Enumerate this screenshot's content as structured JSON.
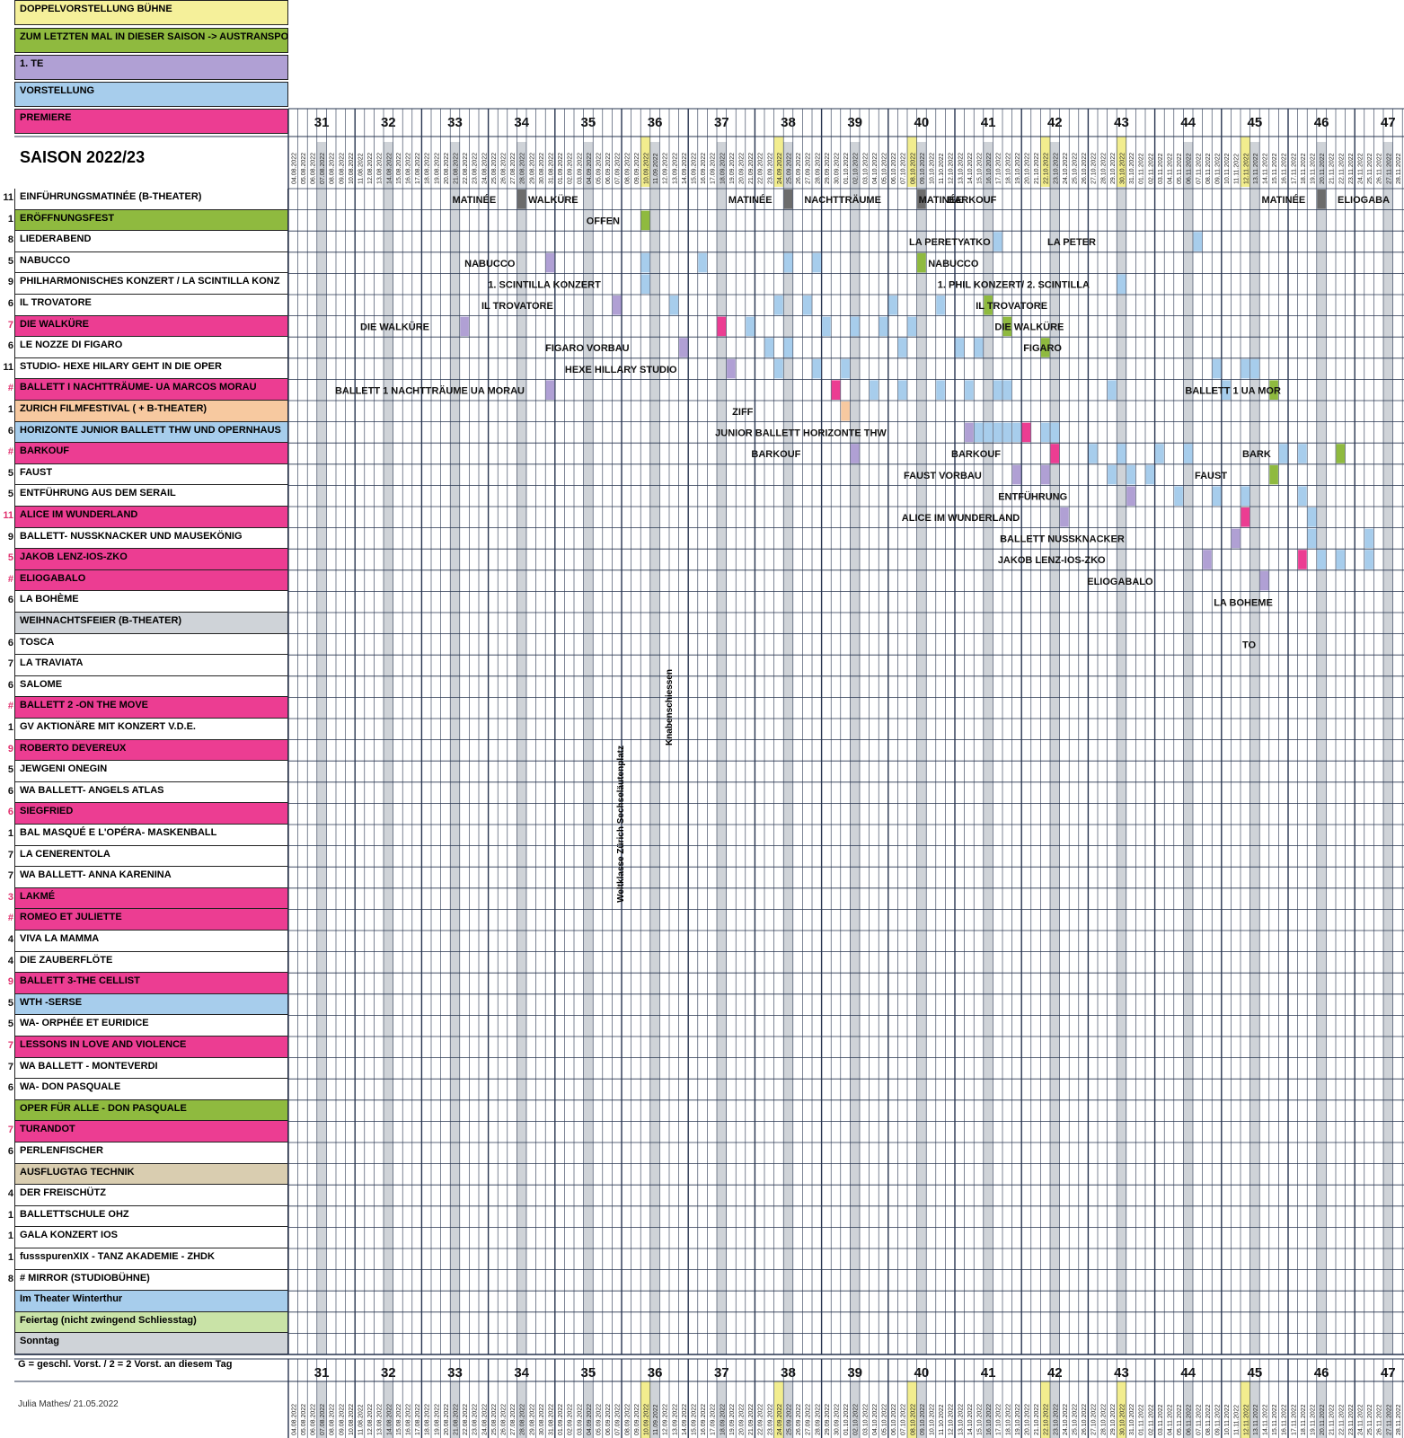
{
  "legend": [
    {
      "label": "DOPPELVORSTELLUNG BÜHNE",
      "color": "#f5f09a"
    },
    {
      "label": "ZUM LETZTEN MAL IN DIESER SAISON -> AUSTRANSPO",
      "color": "#8fba3f"
    },
    {
      "label": "1. TE",
      "color": "#b0a0d4"
    },
    {
      "label": "VORSTELLUNG",
      "color": "#a7cdec"
    },
    {
      "label": "PREMIERE",
      "color": "#ec3d92"
    }
  ],
  "title": "SAISON 2022/23",
  "weeks": [
    "31",
    "32",
    "33",
    "34",
    "35",
    "36",
    "37",
    "38",
    "39",
    "40",
    "41",
    "42",
    "43",
    "44",
    "45",
    "46",
    "47"
  ],
  "dates_first": "04.08.2022",
  "footer_note": "G = geschl. Vorst. / 2 = 2 Vorst. an diesem Tag",
  "footer_author": "Julia Mathes/ 21.05.2022",
  "vertical_notes": [
    "Weltklasse Zürich Sechseläutenplatz",
    "Knabenschiessen"
  ],
  "colors": {
    "premiere": "#ec3d92",
    "te": "#b0a0d4",
    "vorstellung": "#a7cdec",
    "last": "#8fba3f",
    "weekend": "#cfd3d8",
    "grid": "#27344f",
    "sunday_yellow": "#f2ed8e",
    "grey": "#cfd3d8",
    "beige": "#d9cdb0",
    "peach": "#f7c9a0",
    "lightgreen": "#c9e3a7",
    "darkgrey": "#6c6c6c"
  },
  "rows": [
    {
      "n": "11",
      "label": "EINFÜHRUNGSMATINÉE (B-THEATER)",
      "bg": "#ffffff"
    },
    {
      "n": "1",
      "label": "ERÖFFNUNGSFEST",
      "bg": "#8fba3f"
    },
    {
      "n": "8",
      "label": "LIEDERABEND",
      "bg": "#ffffff"
    },
    {
      "n": "5",
      "label": "NABUCCO",
      "bg": "#ffffff"
    },
    {
      "n": "9",
      "label": "PHILHARMONISCHES KONZERT / LA SCINTILLA KONZ",
      "bg": "#ffffff"
    },
    {
      "n": "6",
      "label": "IL TROVATORE",
      "bg": "#ffffff"
    },
    {
      "n": "7",
      "label": "DIE WALKÜRE",
      "bg": "#ec3d92"
    },
    {
      "n": "6",
      "label": "LE NOZZE DI FIGARO",
      "bg": "#ffffff"
    },
    {
      "n": "11",
      "label": "STUDIO- HEXE HILARY GEHT IN DIE OPER",
      "bg": "#ffffff"
    },
    {
      "n": "#",
      "label": "BALLETT I NACHTTRÄUME- UA MARCOS MORAU",
      "bg": "#ec3d92"
    },
    {
      "n": "1",
      "label": "ZURICH FILMFESTIVAL ( + B-THEATER)",
      "bg": "#f7c9a0"
    },
    {
      "n": "6",
      "label": "HORIZONTE JUNIOR BALLETT THW UND OPERNHAUS",
      "bg": "#a7cdec"
    },
    {
      "n": "#",
      "label": "BARKOUF",
      "bg": "#ec3d92"
    },
    {
      "n": "5",
      "label": "FAUST",
      "bg": "#ffffff"
    },
    {
      "n": "5",
      "label": "ENTFÜHRUNG AUS DEM SERAIL",
      "bg": "#ffffff"
    },
    {
      "n": "11",
      "label": "ALICE IM WUNDERLAND",
      "bg": "#ec3d92"
    },
    {
      "n": "9",
      "label": "BALLETT- NUSSKNACKER UND MAUSEKÖNIG",
      "bg": "#ffffff"
    },
    {
      "n": "5",
      "label": "JAKOB LENZ-IOS-ZKO",
      "bg": "#ec3d92"
    },
    {
      "n": "#",
      "label": "ELIOGABALO",
      "bg": "#ec3d92"
    },
    {
      "n": "6",
      "label": "LA BOHÈME",
      "bg": "#ffffff"
    },
    {
      "n": "",
      "label": "WEIHNACHTSFEIER (B-THEATER)",
      "bg": "#cfd3d8"
    },
    {
      "n": "6",
      "label": "TOSCA",
      "bg": "#ffffff"
    },
    {
      "n": "7",
      "label": "LA TRAVIATA",
      "bg": "#ffffff"
    },
    {
      "n": "6",
      "label": "SALOME",
      "bg": "#ffffff"
    },
    {
      "n": "#",
      "label": "BALLETT 2 -ON THE MOVE",
      "bg": "#ec3d92"
    },
    {
      "n": "1",
      "label": "GV AKTIONÄRE MIT KONZERT V.D.E.",
      "bg": "#ffffff"
    },
    {
      "n": "9",
      "label": "ROBERTO DEVEREUX",
      "bg": "#ec3d92"
    },
    {
      "n": "5",
      "label": "JEWGENI ONEGIN",
      "bg": "#ffffff"
    },
    {
      "n": "6",
      "label": "WA BALLETT- ANGELS ATLAS",
      "bg": "#ffffff"
    },
    {
      "n": "6",
      "label": "SIEGFRIED",
      "bg": "#ec3d92"
    },
    {
      "n": "1",
      "label": "BAL MASQUÉ E L'OPÉRA- MASKENBALL",
      "bg": "#ffffff"
    },
    {
      "n": "7",
      "label": "LA CENERENTOLA",
      "bg": "#ffffff"
    },
    {
      "n": "7",
      "label": "WA BALLETT- ANNA KARENINA",
      "bg": "#ffffff"
    },
    {
      "n": "3",
      "label": "LAKMÉ",
      "bg": "#ec3d92"
    },
    {
      "n": "#",
      "label": "ROMEO ET JULIETTE",
      "bg": "#ec3d92"
    },
    {
      "n": "4",
      "label": "VIVA LA MAMMA",
      "bg": "#ffffff"
    },
    {
      "n": "4",
      "label": "DIE ZAUBERFLÖTE",
      "bg": "#ffffff"
    },
    {
      "n": "9",
      "label": "BALLETT 3-THE CELLIST",
      "bg": "#ec3d92"
    },
    {
      "n": "5",
      "label": "WTH -SERSE",
      "bg": "#a7cdec"
    },
    {
      "n": "5",
      "label": "WA- ORPHÉE ET EURIDICE",
      "bg": "#ffffff"
    },
    {
      "n": "7",
      "label": "LESSONS IN LOVE AND VIOLENCE",
      "bg": "#ec3d92"
    },
    {
      "n": "7",
      "label": "WA BALLETT - MONTEVERDI",
      "bg": "#ffffff"
    },
    {
      "n": "6",
      "label": "WA- DON PASQUALE",
      "bg": "#ffffff"
    },
    {
      "n": "",
      "label": "OPER FÜR ALLE - DON PASQUALE",
      "bg": "#8fba3f"
    },
    {
      "n": "7",
      "label": "TURANDOT",
      "bg": "#ec3d92"
    },
    {
      "n": "6",
      "label": "PERLENFISCHER",
      "bg": "#ffffff"
    },
    {
      "n": "",
      "label": "AUSFLUGTAG TECHNIK",
      "bg": "#d9cdb0"
    },
    {
      "n": "4",
      "label": "DER FREISCHÜTZ",
      "bg": "#ffffff"
    },
    {
      "n": "1",
      "label": "BALLETTSCHULE OHZ",
      "bg": "#ffffff"
    },
    {
      "n": "1",
      "label": "GALA KONZERT IOS",
      "bg": "#ffffff"
    },
    {
      "n": "1",
      "label": "fussspurenXIX  - TANZ AKADEMIE - ZHDK",
      "bg": "#ffffff"
    },
    {
      "n": "8",
      "label": "# MIRROR (STUDIOBÜHNE)",
      "bg": "#ffffff"
    },
    {
      "n": "",
      "label": "Im Theater Winterthur",
      "bg": "#a7cdec"
    },
    {
      "n": "",
      "label": "Feiertag (nicht zwingend Schliesstag)",
      "bg": "#c9e3a7"
    },
    {
      "n": "",
      "label": "Sonntag",
      "bg": "#cfd3d8"
    }
  ],
  "annotations": [
    {
      "row": 0,
      "col": 22,
      "text": "MATINÉE",
      "align": "right"
    },
    {
      "row": 0,
      "col": 24,
      "text": "WALKÜRE",
      "align": "left"
    },
    {
      "row": 0,
      "col": 51,
      "text": "MATINÉE",
      "align": "right"
    },
    {
      "row": 0,
      "col": 53,
      "text": "NACHTTRÄUME",
      "align": "left"
    },
    {
      "row": 0,
      "col": 65,
      "text": "MATINÉE",
      "align": "left"
    },
    {
      "row": 0,
      "col": 68,
      "text": "BARKOUF",
      "align": "left"
    },
    {
      "row": 0,
      "col": 107,
      "text": "MATINÉE",
      "align": "right"
    },
    {
      "row": 0,
      "col": 109,
      "text": "ELIOGABA",
      "align": "left"
    },
    {
      "row": 1,
      "col": 35,
      "text": "OFFEN",
      "align": "right"
    },
    {
      "row": 2,
      "col": 64,
      "text": "LA PERETYATKO",
      "align": "left"
    },
    {
      "row": 2,
      "col": 85,
      "text": "LA PETER",
      "align": "right"
    },
    {
      "row": 3,
      "col": 24,
      "text": "NABUCCO",
      "align": "right"
    },
    {
      "row": 3,
      "col": 66,
      "text": "NABUCCO",
      "align": "left"
    },
    {
      "row": 4,
      "col": 33,
      "text": "1. SCINTILLA KONZERT",
      "align": "right"
    },
    {
      "row": 4,
      "col": 67,
      "text": "1. PHIL KONZERT/ 2. SCINTILLA",
      "align": "left"
    },
    {
      "row": 5,
      "col": 28,
      "text": "IL TROVATORE",
      "align": "right"
    },
    {
      "row": 5,
      "col": 71,
      "text": "IL TROVATORE",
      "align": "left"
    },
    {
      "row": 6,
      "col": 15,
      "text": "DIE WALKÜRE",
      "align": "right"
    },
    {
      "row": 6,
      "col": 73,
      "text": "DIE WALKÜRE",
      "align": "left"
    },
    {
      "row": 7,
      "col": 36,
      "text": "FIGARO VORBAU",
      "align": "right"
    },
    {
      "row": 7,
      "col": 76,
      "text": "FIGARO",
      "align": "left"
    },
    {
      "row": 8,
      "col": 41,
      "text": "HEXE HILLARY STUDIO",
      "align": "right"
    },
    {
      "row": 9,
      "col": 25,
      "text": "BALLETT  1 NACHTTRÄUME UA  MORAU",
      "align": "right"
    },
    {
      "row": 9,
      "col": 93,
      "text": "BALLETT 1 UA MOR",
      "align": "left"
    },
    {
      "row": 10,
      "col": 49,
      "text": "ZIFF",
      "align": "right"
    },
    {
      "row": 11,
      "col": 63,
      "text": "JUNIOR BALLETT HORIZONTE THW",
      "align": "right"
    },
    {
      "row": 12,
      "col": 54,
      "text": "BARKOUF",
      "align": "right"
    },
    {
      "row": 12,
      "col": 75,
      "text": "BARKOUF",
      "align": "right"
    },
    {
      "row": 12,
      "col": 99,
      "text": "BARK",
      "align": "left"
    },
    {
      "row": 13,
      "col": 73,
      "text": "FAUST VORBAU",
      "align": "right"
    },
    {
      "row": 13,
      "col": 94,
      "text": "FAUST",
      "align": "left"
    },
    {
      "row": 14,
      "col": 82,
      "text": "ENTFÜHRUNG",
      "align": "right"
    },
    {
      "row": 15,
      "col": 77,
      "text": "ALICE IM WUNDERLAND",
      "align": "right"
    },
    {
      "row": 16,
      "col": 88,
      "text": "BALLETT NUSSKNACKER",
      "align": "right"
    },
    {
      "row": 17,
      "col": 86,
      "text": "JAKOB LENZ-IOS-ZKO",
      "align": "right"
    },
    {
      "row": 18,
      "col": 91,
      "text": "ELIOGABALO",
      "align": "right"
    },
    {
      "row": 19,
      "col": 96,
      "text": "LA BOHEME",
      "align": "left"
    },
    {
      "row": 21,
      "col": 99,
      "text": "TO",
      "align": "left"
    }
  ]
}
